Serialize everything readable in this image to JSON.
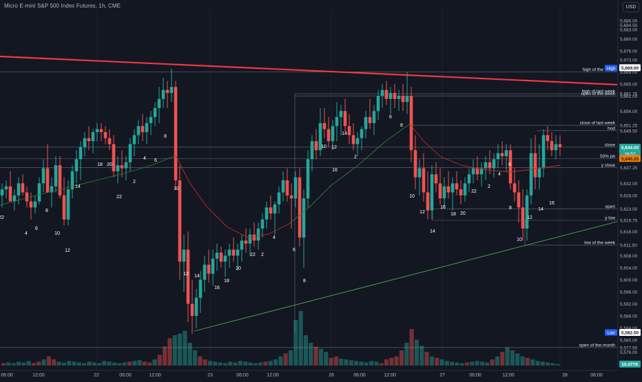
{
  "header": {
    "title": "Micro E-mini S&P 500 Index Futures, 1h, CME",
    "currency": "USD"
  },
  "colors": {
    "background": "#131722",
    "bull": "#26a69a",
    "bear": "#ef5350",
    "trendline_red": "#f23645",
    "trendline_green": "#4caf50",
    "ema_green": "#2e7d32",
    "ema_red": "#c62828",
    "level_line": "#b2b5be",
    "axis_text": "#b2b5be"
  },
  "price_axis": {
    "ticks": [
      "5,686.00",
      "5,684.50",
      "5,683.00",
      "5,680.00",
      "5,676.00",
      "5,673.00",
      "5,669.00",
      "5,665.00",
      "5,661.75",
      "5,661.00",
      "5,656.00",
      "5,651.25",
      "5,649.50",
      "5,644.00",
      "5,640.25",
      "5,637.25",
      "5,632.00",
      "5,628.00",
      "5,623.50",
      "5,619.75",
      "5,616.00",
      "5,611.50",
      "5,608.00",
      "5,604.00",
      "5,600.00",
      "5,596.00",
      "5,592.00",
      "5,588.00",
      "5,584.00",
      "5,582.50",
      "5,580.00",
      "5,577.50",
      "5,576.00",
      "5,572.00"
    ],
    "high_label": "High",
    "high_value": "5,669.00",
    "low_label": "Low",
    "low_value": "5,582.50",
    "current_price": "5,644.00",
    "countdown": "19:57",
    "pb_price": "5,640.25",
    "volume_value": "10.477K",
    "range": [
      5570,
      5690
    ]
  },
  "time_axis": {
    "labels": [
      "06:00",
      "12:00",
      "22",
      "06:00",
      "12:00",
      "23",
      "06:00",
      "12:00",
      "26",
      "06:00",
      "12:00",
      "27",
      "06:00",
      "12:00",
      "28",
      "06:00"
    ]
  },
  "levels": [
    {
      "label": "high of the week",
      "price": "5,669.00"
    },
    {
      "label": "high of last week",
      "price": "5,661.75"
    },
    {
      "label": "open of the week",
      "price": "5,661.00"
    },
    {
      "label": "close of last week",
      "price": "5,651.25"
    },
    {
      "label": "hod",
      "price": "5,649.50"
    },
    {
      "label": "close",
      "price": "5,644.00"
    },
    {
      "label": "50% pb",
      "price": "5,640.25"
    },
    {
      "label": "y close",
      "price": "5,637.25"
    },
    {
      "label": "open",
      "price": "5,623.50"
    },
    {
      "label": "y low",
      "price": "5,619.75"
    },
    {
      "label": "low of the week",
      "price": "5,611.50"
    },
    {
      "label": "open of the month",
      "price": "5,577.50"
    }
  ],
  "hour_labels": [
    "22",
    "4",
    "6",
    "8",
    "10",
    "12",
    "14",
    "18",
    "20",
    "22",
    "2",
    "4",
    "6",
    "8",
    "10",
    "12",
    "14",
    "16",
    "18",
    "20",
    "22",
    "2",
    "4",
    "6",
    "8",
    "10",
    "12",
    "14",
    "16",
    "2",
    "6",
    "8",
    "10",
    "12",
    "14",
    "16",
    "18",
    "20",
    "22",
    "2",
    "4",
    "6",
    "8",
    "10",
    "12",
    "14",
    "16"
  ]
}
